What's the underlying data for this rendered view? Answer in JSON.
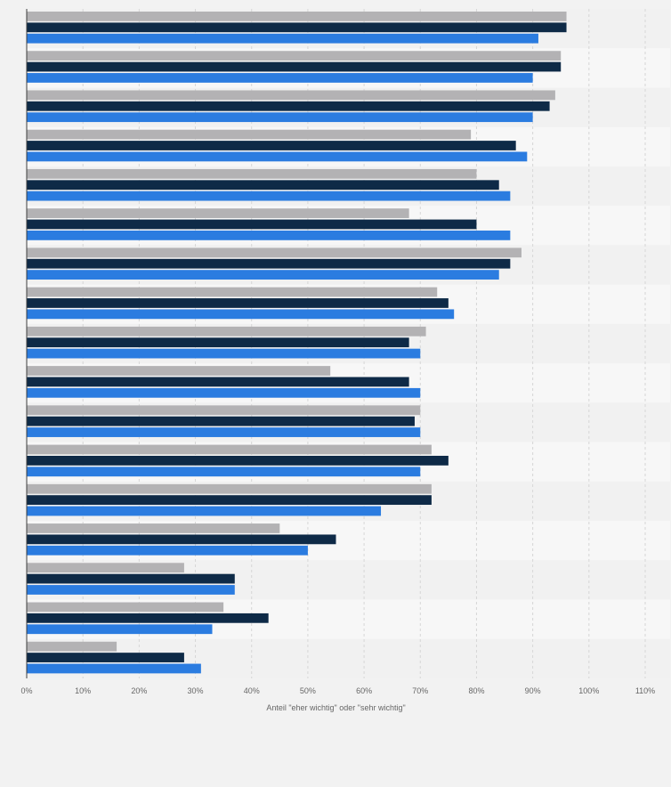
{
  "colors": {
    "page_background": "#f2f2f2",
    "band_light": "#f7f7f7",
    "band_dark": "#f1f1f1",
    "gridline": "#d6d6d6",
    "axis_line": "#3d3d3d",
    "tick_text": "#666666",
    "label_text": "#666666"
  },
  "chart_data": {
    "type": "bar",
    "orientation": "horizontal",
    "xlabel": "Anteil \"eher wichtig\" oder \"sehr wichtig\"",
    "ylabel": "",
    "xlim": [
      0,
      110
    ],
    "x_ticks": [
      0,
      10,
      20,
      30,
      40,
      50,
      60,
      70,
      80,
      90,
      100,
      110
    ],
    "x_tick_labels": [
      "0%",
      "10%",
      "20%",
      "30%",
      "40%",
      "50%",
      "60%",
      "70%",
      "80%",
      "90%",
      "100%",
      "110%"
    ],
    "grid": true,
    "category_count": 17,
    "category_labels_visible": false,
    "legend_visible": false,
    "series": [
      {
        "color": "#b3b2b4",
        "values": [
          96,
          95,
          94,
          79,
          80,
          68,
          88,
          73,
          71,
          54,
          70,
          72,
          72,
          45,
          28,
          35,
          16
        ]
      },
      {
        "color": "#0e2a47",
        "values": [
          96,
          95,
          93,
          87,
          84,
          80,
          86,
          75,
          68,
          68,
          69,
          75,
          72,
          55,
          37,
          43,
          28
        ]
      },
      {
        "color": "#2b7ce0",
        "values": [
          91,
          90,
          90,
          89,
          86,
          86,
          84,
          76,
          70,
          70,
          70,
          70,
          63,
          50,
          37,
          33,
          31
        ]
      }
    ]
  }
}
